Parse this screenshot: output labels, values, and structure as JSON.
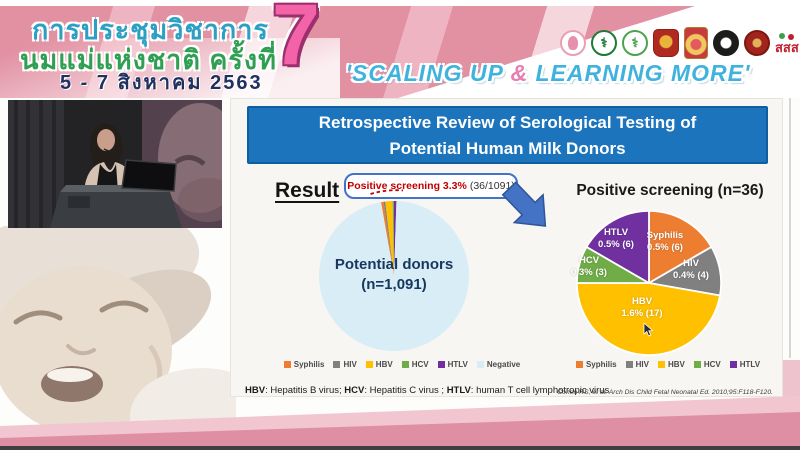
{
  "banner": {
    "title_line1": "การประชุมวิชาการ",
    "title_line2": "นมแม่แห่งชาติ ครั้งที่",
    "date_line": "5 - 7 สิงหาคม 2563",
    "edition_number": "7",
    "slogan_prefix": "'SCALING UP ",
    "slogan_amp": "&",
    "slogan_suffix": " LEARNING MORE'",
    "sss_text": "สสส",
    "logos": [
      "mother-and-child-logo",
      "green-medical-association-logo",
      "green-health-department-logo",
      "red-university-crest",
      "royal-college-crest",
      "black-academic-seal",
      "red-society-seal",
      "thai-health-promotion-logo"
    ]
  },
  "video": {
    "description": "presenter speaking at podium with laptop"
  },
  "slide": {
    "title": "Retrospective Review of Serological Testing of Potential Human Milk Donors",
    "result_label": "Result",
    "callout": {
      "highlight": "Positive screening 3.3%",
      "detail": "(36/1091)"
    },
    "footnote_parts": [
      "HBV",
      ": Hepatitis B virus; ",
      "HCV",
      ": Hepatitis C virus ; ",
      "HTLV",
      ": human T cell lymphotropic virus"
    ],
    "citation": "Cohen RS, et al. Arch Dis Child Fetal Neonatal Ed. 2010;95:F118-F120."
  },
  "colors": {
    "banner_blue": "#1b74bc",
    "arrow_blue": "#4472c4",
    "callout_red": "#c00000",
    "pink_band": "#de8fa3",
    "slide_bg": "#f7f6f3"
  },
  "chart_data": [
    {
      "type": "pie",
      "title": "Potential donors (n=1,091)",
      "center_label": [
        "Potential donors",
        "(n=1,091)"
      ],
      "total": 1091,
      "start_deg": -10,
      "annotation": "Positive screening 3.3% (36/1091)",
      "slices": [
        {
          "name": "Syphilis",
          "value": 6,
          "color": "#ed7d31"
        },
        {
          "name": "HIV",
          "value": 4,
          "color": "#808080"
        },
        {
          "name": "HBV",
          "value": 17,
          "color": "#ffc000"
        },
        {
          "name": "HCV",
          "value": 3,
          "color": "#70ad47"
        },
        {
          "name": "HTLV",
          "value": 6,
          "color": "#7030a0"
        },
        {
          "name": "Negative",
          "value": 1055,
          "color": "#d9edf7"
        }
      ]
    },
    {
      "type": "pie",
      "title": "Positive screening (n=36)",
      "total": 36,
      "start_deg": 0,
      "slices": [
        {
          "name": "Syphilis",
          "value": 6,
          "label": "0.5% (6)",
          "color": "#ed7d31"
        },
        {
          "name": "HIV",
          "value": 4,
          "label": "0.4% (4)",
          "color": "#808080"
        },
        {
          "name": "HBV",
          "value": 17,
          "label": "1.6% (17)",
          "color": "#ffc000"
        },
        {
          "name": "HCV",
          "value": 3,
          "label": "0.3% (3)",
          "color": "#70ad47"
        },
        {
          "name": "HTLV",
          "value": 6,
          "label": "0.5% (6)",
          "color": "#7030a0"
        }
      ]
    }
  ]
}
